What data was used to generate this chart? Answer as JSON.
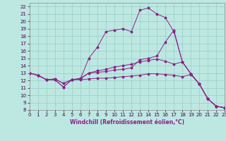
{
  "xlabel": "Windchill (Refroidissement éolien,°C)",
  "xlim": [
    0,
    23
  ],
  "ylim": [
    8,
    22.5
  ],
  "xticks": [
    0,
    1,
    2,
    3,
    4,
    5,
    6,
    7,
    8,
    9,
    10,
    11,
    12,
    13,
    14,
    15,
    16,
    17,
    18,
    19,
    20,
    21,
    22,
    23
  ],
  "yticks": [
    8,
    9,
    10,
    11,
    12,
    13,
    14,
    15,
    16,
    17,
    18,
    19,
    20,
    21,
    22
  ],
  "background_color": "#bde8e2",
  "grid_color": "#9ecfca",
  "line_color": "#882288",
  "series_x": [
    0,
    1,
    2,
    3,
    4,
    5,
    6,
    7,
    8,
    9,
    10,
    11,
    12,
    13,
    14,
    15,
    16,
    17,
    18,
    19,
    20,
    21,
    22,
    23
  ],
  "series": [
    [
      13.0,
      12.7,
      12.1,
      12.1,
      11.1,
      12.1,
      12.2,
      13.0,
      13.1,
      13.2,
      13.4,
      13.5,
      13.7,
      14.8,
      15.0,
      15.3,
      17.2,
      18.8,
      14.5,
      12.9,
      11.5,
      9.5,
      8.5,
      8.3
    ],
    [
      13.0,
      12.7,
      12.1,
      12.2,
      11.6,
      12.1,
      12.2,
      15.0,
      16.5,
      18.6,
      18.8,
      19.0,
      18.6,
      21.5,
      21.8,
      21.0,
      20.5,
      18.6,
      14.5,
      12.9,
      11.5,
      9.5,
      8.5,
      8.3
    ],
    [
      13.0,
      12.7,
      12.1,
      12.2,
      11.6,
      12.1,
      12.3,
      13.0,
      13.3,
      13.5,
      13.8,
      14.0,
      14.2,
      14.5,
      14.7,
      14.9,
      14.6,
      14.2,
      14.5,
      12.9,
      11.5,
      9.5,
      8.5,
      8.3
    ],
    [
      13.0,
      12.7,
      12.1,
      12.1,
      11.1,
      12.1,
      12.1,
      12.2,
      12.3,
      12.3,
      12.4,
      12.5,
      12.6,
      12.7,
      12.9,
      12.9,
      12.8,
      12.7,
      12.5,
      12.8,
      11.5,
      9.5,
      8.5,
      8.3
    ]
  ]
}
